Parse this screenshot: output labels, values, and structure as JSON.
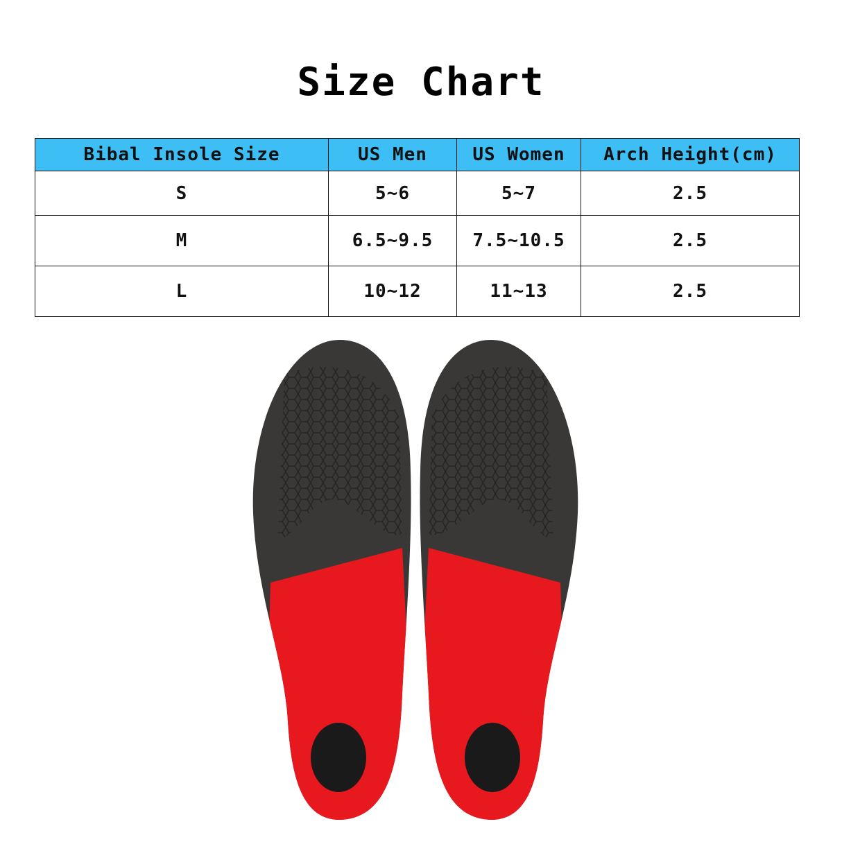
{
  "title": "Size Chart",
  "table": {
    "headers": [
      "Bibal Insole Size",
      "US Men",
      "US Women",
      "Arch Height(cm)"
    ],
    "rows": [
      [
        "S",
        "5~6",
        "5~7",
        "2.5"
      ],
      [
        "M",
        "6.5~9.5",
        "7.5~10.5",
        "2.5"
      ],
      [
        "L",
        "10~12",
        "11~13",
        "2.5"
      ]
    ],
    "header_color": "#3dbff5"
  },
  "image": {
    "colors": {
      "top": "#3a3836",
      "heel": "#e8191e"
    }
  }
}
